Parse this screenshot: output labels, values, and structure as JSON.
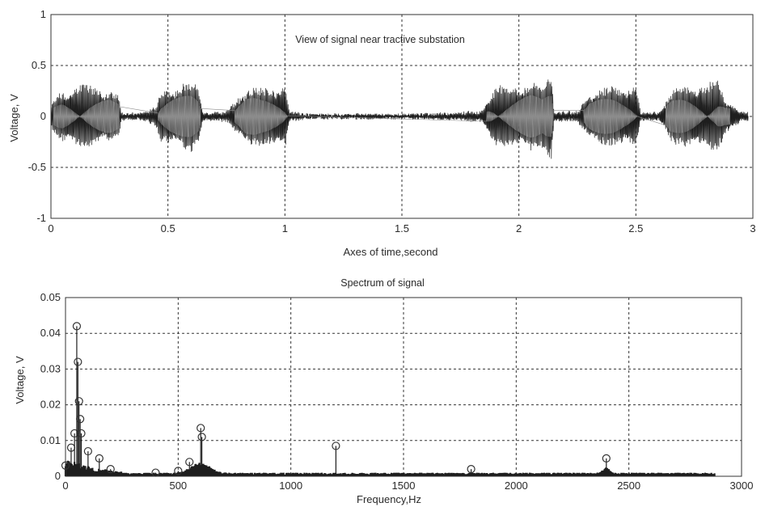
{
  "chart_data": [
    {
      "type": "line",
      "title": "View of signal near tractive substation",
      "xlabel": "Axes of  time,second",
      "ylabel": "Voltage, V",
      "xlim": [
        0,
        3
      ],
      "ylim": [
        -1,
        1
      ],
      "grid": true,
      "xticks": [
        "0",
        "0.5",
        "1",
        "1.5",
        "2",
        "2.5",
        "3"
      ],
      "yticks": [
        "1",
        "0.5",
        "0",
        "-0.5",
        "-1"
      ],
      "series": [
        {
          "envelope_x": [
            0.0,
            0.05,
            0.1,
            0.15,
            0.2,
            0.25,
            0.29,
            0.3,
            0.4,
            0.45,
            0.47,
            0.5,
            0.55,
            0.6,
            0.63,
            0.65,
            0.75,
            0.8,
            0.83,
            0.87,
            0.9,
            0.95,
            1.0,
            1.02,
            1.1,
            1.3,
            1.5,
            1.7,
            1.84,
            1.87,
            1.9,
            1.95,
            2.0,
            2.05,
            2.1,
            2.14,
            2.15,
            2.25,
            2.3,
            2.35,
            2.4,
            2.45,
            2.5,
            2.52,
            2.6,
            2.65,
            2.7,
            2.75,
            2.8,
            2.85,
            2.88,
            2.95
          ],
          "envelope_amp": [
            0.12,
            0.28,
            0.3,
            0.32,
            0.3,
            0.28,
            0.2,
            0.03,
            0.04,
            0.1,
            0.25,
            0.3,
            0.32,
            0.35,
            0.3,
            0.04,
            0.04,
            0.2,
            0.3,
            0.3,
            0.28,
            0.3,
            0.35,
            0.04,
            0.02,
            0.02,
            0.02,
            0.03,
            0.05,
            0.2,
            0.3,
            0.3,
            0.32,
            0.35,
            0.3,
            0.5,
            0.05,
            0.04,
            0.25,
            0.28,
            0.3,
            0.3,
            0.35,
            0.04,
            0.04,
            0.25,
            0.3,
            0.32,
            0.32,
            0.35,
            0.2,
            0.05
          ]
        }
      ]
    },
    {
      "type": "scatter",
      "title": "Spectrum of signal",
      "xlabel": "Frequency,Hz",
      "ylabel": "Voltage, V",
      "xlim": [
        0,
        3000
      ],
      "ylim": [
        0,
        0.05
      ],
      "grid": true,
      "xticks": [
        "0",
        "500",
        "1000",
        "1500",
        "2000",
        "2500",
        "3000"
      ],
      "yticks": [
        "0.05",
        "0.04",
        "0.03",
        "0.02",
        "0.01",
        "0"
      ],
      "series": [
        {
          "peaks_hz": [
            0,
            25,
            40,
            50,
            55,
            60,
            65,
            70,
            100,
            150,
            200,
            400,
            500,
            550,
            600,
            605,
            1200,
            1800,
            2400
          ],
          "peaks_v": [
            0.003,
            0.008,
            0.012,
            0.042,
            0.032,
            0.021,
            0.016,
            0.012,
            0.007,
            0.005,
            0.002,
            0.001,
            0.0015,
            0.004,
            0.0135,
            0.011,
            0.0085,
            0.002,
            0.005
          ]
        }
      ]
    }
  ]
}
